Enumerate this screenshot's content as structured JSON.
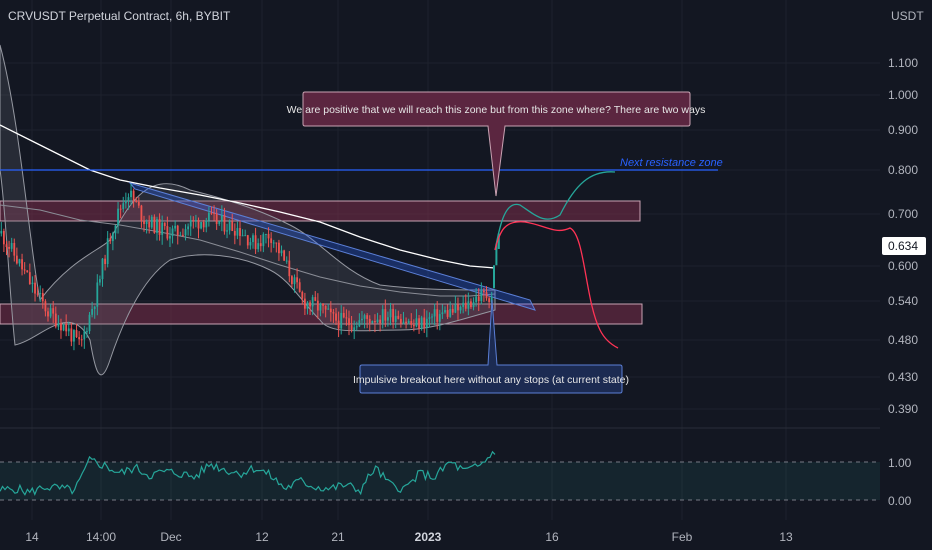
{
  "header": {
    "title": "CRVUSDT Perpetual Contract, 6h, BYBIT",
    "currency": "USDT"
  },
  "price_axis": {
    "ticks": [
      "1.100",
      "1.000",
      "0.900",
      "0.800",
      "0.700",
      "0.600",
      "0.540",
      "0.480",
      "0.430",
      "0.390"
    ],
    "current_price": "0.634"
  },
  "oscillator_axis": {
    "ticks": [
      "1.00",
      "0.00"
    ]
  },
  "time_axis": {
    "ticks": [
      "14",
      "14:00",
      "Dec",
      "12",
      "21",
      "2023",
      "16",
      "Feb",
      "13"
    ]
  },
  "annotations": {
    "top_callout": "We are positive that we will reach this zone but from this zone where? There are two ways",
    "bottom_callout": "Impulsive breakout here without any stops (at current state)",
    "resistance_label": "Next resistance zone"
  },
  "colors": {
    "background": "#131722",
    "candle_up": "#26a69a",
    "candle_down": "#ef5350",
    "zone_fill": "#7b2d4a",
    "zone_border": "#c9a3b3",
    "bollinger_band": "#9598a1",
    "moving_average": "#ffffff",
    "resistance_line": "#2962ff",
    "bullish_path": "#26a69a",
    "bearish_path": "#ff3355",
    "oscillator_line": "#26a69a",
    "callout_top_fill": "#5b2640",
    "callout_bottom_fill": "#1c2b52"
  },
  "chart_data": {
    "type": "candlestick",
    "title": "CRVUSDT Perpetual Contract, 6h, BYBIT",
    "ylabel": "USDT",
    "y_scale": "log",
    "ylim": [
      0.37,
      1.2
    ],
    "current_price": 0.634,
    "zones": [
      {
        "low": 0.685,
        "high": 0.725
      },
      {
        "low": 0.5,
        "high": 0.53
      }
    ],
    "resistance_level": 0.8,
    "close_path": [
      0.66,
      0.61,
      0.56,
      0.52,
      0.5,
      0.47,
      0.55,
      0.67,
      0.75,
      0.69,
      0.67,
      0.66,
      0.68,
      0.69,
      0.68,
      0.67,
      0.64,
      0.66,
      0.6,
      0.54,
      0.53,
      0.51,
      0.505,
      0.51,
      0.515,
      0.52,
      0.5,
      0.51,
      0.52,
      0.525,
      0.545,
      0.55
    ],
    "projection_up": [
      0.6,
      0.68,
      0.74,
      0.69,
      0.705,
      0.8
    ],
    "projection_down": [
      0.6,
      0.68,
      0.68,
      0.64,
      0.5,
      0.47
    ],
    "oscillator": {
      "ylim": [
        0,
        1
      ],
      "series": [
        0.25,
        0.3,
        0.2,
        0.35,
        0.3,
        0.25,
        1.05,
        0.9,
        0.7,
        0.85,
        0.65,
        0.75,
        0.7,
        0.6,
        0.95,
        0.8,
        0.7,
        0.85,
        0.65,
        0.3,
        0.5,
        0.35,
        0.3,
        0.4,
        0.25,
        0.85,
        0.4,
        0.3,
        0.7,
        0.6,
        1.0,
        0.75,
        0.9,
        1.3
      ]
    }
  }
}
